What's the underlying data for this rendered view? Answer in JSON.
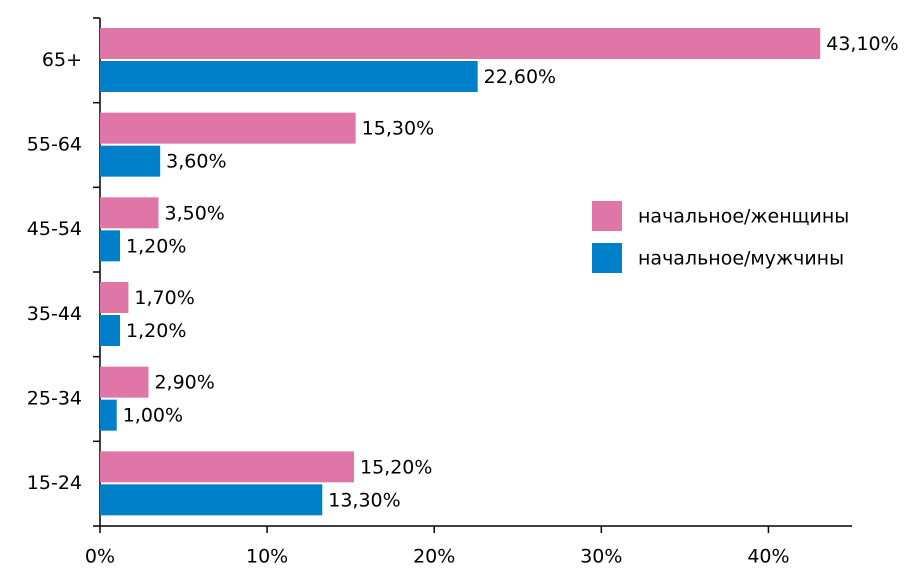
{
  "chart_data": {
    "type": "hbar",
    "categories": [
      "65+",
      "55-64",
      "45-54",
      "35-44",
      "25-34",
      "15-24"
    ],
    "series": [
      {
        "name": "начальное/женщины",
        "color": "#e076a8",
        "values": [
          43.1,
          15.3,
          3.5,
          1.7,
          2.9,
          15.2
        ],
        "value_labels": [
          "43,10%",
          "15,30%",
          "3,50%",
          "1,70%",
          "2,90%",
          "15,20%"
        ]
      },
      {
        "name": "начальное/мужчины",
        "color": "#0080c8",
        "values": [
          22.6,
          3.6,
          1.2,
          1.2,
          1.0,
          13.3
        ],
        "value_labels": [
          "22,60%",
          "3,60%",
          "1,20%",
          "1,20%",
          "1,00%",
          "13,30%"
        ]
      }
    ],
    "xlim": [
      0,
      45
    ],
    "xticks": [
      {
        "value": 0,
        "label": "0%"
      },
      {
        "value": 10,
        "label": "10%"
      },
      {
        "value": 20,
        "label": "20%"
      },
      {
        "value": 30,
        "label": "30%"
      },
      {
        "value": 40,
        "label": "40%"
      }
    ],
    "legend": "right"
  }
}
